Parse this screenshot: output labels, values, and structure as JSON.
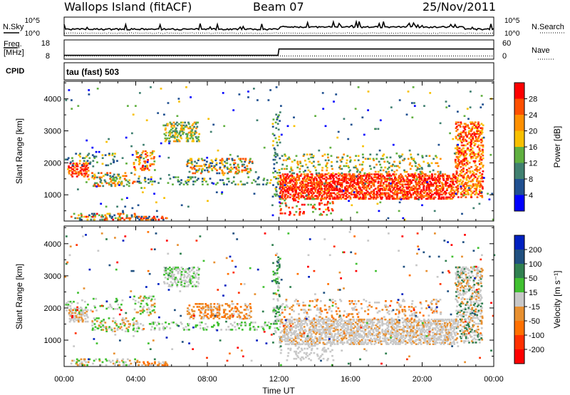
{
  "header": {
    "station": "Wallops Island (fitACF)",
    "beam": "Beam 07",
    "date": "25/Nov/2011"
  },
  "side_labels": {
    "nsky": "N.Sky",
    "freq_line1": "Freq.",
    "freq_line2": "[MHz]",
    "cpid": "CPID",
    "nsearch": "N.Search",
    "nave": "Nave"
  },
  "cpid_text": "tau (fast) 503",
  "noise_panel": {
    "left_ticks": [
      "10^5",
      "10^0"
    ],
    "right_ticks": [
      "10^5",
      "10^0"
    ]
  },
  "freq_panel": {
    "left_ticks": [
      "18",
      "8"
    ],
    "right_ticks": [
      "60",
      "0"
    ],
    "freq_mhz": [
      {
        "t": 0,
        "v": 9.8
      },
      {
        "t": 11.95,
        "v": 9.8
      },
      {
        "t": 12.0,
        "v": 14.5
      },
      {
        "t": 24,
        "v": 14.5
      }
    ],
    "nave": [
      {
        "t": 0,
        "v": 8
      },
      {
        "t": 24,
        "v": 8
      }
    ]
  },
  "chart_data": [
    {
      "type": "heatmap",
      "name": "power",
      "ylabel": "Slant Range [km]",
      "ylim": [
        180,
        4550
      ],
      "yticks": [
        1000,
        2000,
        3000,
        4000
      ],
      "xticks": [
        "00:00",
        "04:00",
        "08:00",
        "12:00",
        "16:00",
        "20:00",
        "00:00"
      ],
      "xlim": [
        0,
        24
      ],
      "colorbar": {
        "label": "Power [dB]",
        "ticks": [
          "28",
          "24",
          "20",
          "16",
          "12",
          "8",
          "4"
        ],
        "colors": [
          "#ff0000",
          "#ff5000",
          "#ff9000",
          "#f8c000",
          "#60b040",
          "#408070",
          "#205090",
          "#0000ff"
        ]
      }
    },
    {
      "type": "heatmap",
      "name": "velocity",
      "ylabel": "Slant Range [km]",
      "ylim": [
        180,
        4550
      ],
      "yticks": [
        1000,
        2000,
        3000,
        4000
      ],
      "xticks": [
        "00:00",
        "04:00",
        "08:00",
        "12:00",
        "16:00",
        "20:00",
        "00:00"
      ],
      "xlim": [
        0,
        24
      ],
      "xlabel": "Time UT",
      "colorbar": {
        "label": "Velocity [m s⁻¹]",
        "ticks": [
          "200",
          "100",
          "50",
          "15",
          "-15",
          "-50",
          "-100",
          "-200"
        ],
        "colors": [
          "#0020c0",
          "#205080",
          "#308050",
          "#40c030",
          "#c8c8c8",
          "#e89030",
          "#ff7000",
          "#ff3000",
          "#ff0000"
        ]
      }
    }
  ]
}
